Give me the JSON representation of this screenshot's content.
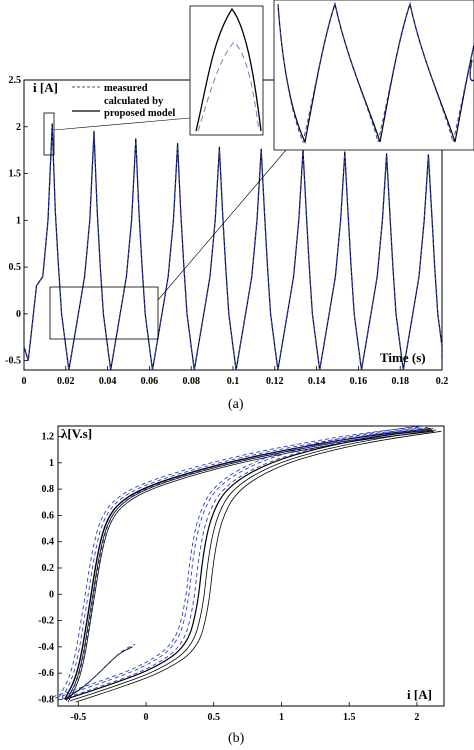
{
  "chart_data": [
    {
      "type": "line",
      "panel_caption": "(a)",
      "ylabel": "i [A]",
      "xlabel": "Time (s)",
      "xlim": [
        0,
        0.2
      ],
      "ylim": [
        -0.6,
        2.5
      ],
      "x_ticks": [
        "0",
        "0.02",
        "0.04",
        "0.06",
        "0.08",
        "0.1",
        "0.12",
        "0.14",
        "0.16",
        "0.18",
        "0.2"
      ],
      "y_ticks": [
        "2.5",
        "2",
        "1.5",
        "1",
        "0.5",
        "0",
        "-0.5"
      ],
      "legend": {
        "position": "top-left",
        "entries": [
          "measured",
          "calculated by proposed model"
        ]
      },
      "period_s": 0.02,
      "peaks": [
        {
          "x": 0.0135,
          "y": 2.03
        },
        {
          "x": 0.0335,
          "y": 1.95
        },
        {
          "x": 0.0535,
          "y": 1.87
        },
        {
          "x": 0.0735,
          "y": 1.82
        },
        {
          "x": 0.0935,
          "y": 1.78
        },
        {
          "x": 0.1135,
          "y": 1.76
        },
        {
          "x": 0.1335,
          "y": 1.75
        },
        {
          "x": 0.1535,
          "y": 1.73
        },
        {
          "x": 0.1735,
          "y": 1.71
        },
        {
          "x": 0.1935,
          "y": 1.7
        }
      ],
      "troughs_y": -0.6,
      "series": [
        {
          "name": "measured",
          "color": "#2b3cc4",
          "style": "dashed"
        },
        {
          "name": "calculated by proposed model",
          "color": "#000000",
          "style": "solid"
        }
      ],
      "insets": [
        "zoom on first peak near x=0.012–0.015",
        "zoom on troughs x=0.02–0.065"
      ]
    },
    {
      "type": "line",
      "panel_caption": "(b)",
      "ylabel": "λ[V.s]",
      "xlabel": "i [A]",
      "xlim": [
        -0.65,
        2.2
      ],
      "ylim": [
        -0.85,
        1.28
      ],
      "x_ticks": [
        "-0.5",
        "0",
        "0.5",
        "1",
        "1.5",
        "2"
      ],
      "y_ticks": [
        "1.2",
        "1",
        "0.8",
        "0.6",
        "0.4",
        "0.2",
        "0",
        "-0.2",
        "-0.4",
        "-0.6",
        "-0.8"
      ],
      "upper_branch": [
        [
          -0.6,
          -0.8
        ],
        [
          -0.5,
          -0.6
        ],
        [
          -0.42,
          -0.1
        ],
        [
          -0.36,
          0.3
        ],
        [
          -0.3,
          0.55
        ],
        [
          -0.2,
          0.7
        ],
        [
          0,
          0.82
        ],
        [
          0.4,
          0.95
        ],
        [
          0.8,
          1.05
        ],
        [
          1.2,
          1.13
        ],
        [
          1.6,
          1.2
        ],
        [
          2.1,
          1.26
        ]
      ],
      "lower_branch": [
        [
          -0.6,
          -0.8
        ],
        [
          -0.3,
          -0.7
        ],
        [
          0.05,
          -0.57
        ],
        [
          0.3,
          -0.4
        ],
        [
          0.38,
          -0.1
        ],
        [
          0.42,
          0.3
        ],
        [
          0.48,
          0.6
        ],
        [
          0.6,
          0.82
        ],
        [
          0.9,
          1.0
        ],
        [
          1.3,
          1.12
        ],
        [
          1.7,
          1.2
        ],
        [
          2.1,
          1.26
        ]
      ],
      "series": [
        {
          "name": "measured",
          "color": "#2b3cc4",
          "style": "dashed"
        },
        {
          "name": "calculated by proposed model",
          "color": "#000000",
          "style": "solid"
        }
      ]
    }
  ]
}
